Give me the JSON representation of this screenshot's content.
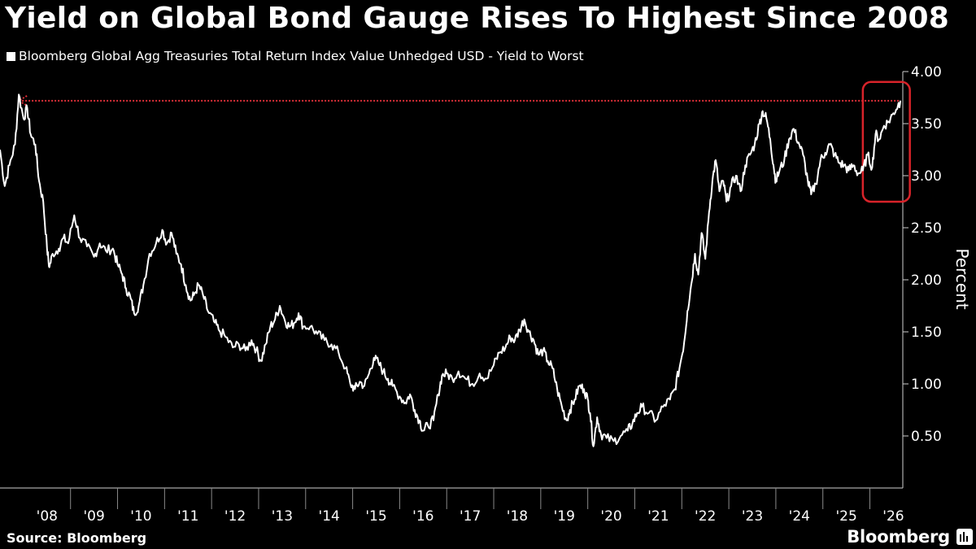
{
  "chart_data": {
    "type": "line",
    "title": "Yield on Global Bond Gauge Rises To Highest Since 2008",
    "series": [
      {
        "name": "Bloomberg Global Agg Treasuries Total Return Index Value Unhedged USD - Yield to Worst",
        "color": "#ffffff",
        "points": [
          [
            2007.5,
            3.25
          ],
          [
            2007.6,
            2.9
          ],
          [
            2007.7,
            3.1
          ],
          [
            2007.82,
            3.3
          ],
          [
            2007.9,
            3.78
          ],
          [
            2008.0,
            3.55
          ],
          [
            2008.08,
            3.65
          ],
          [
            2008.15,
            3.4
          ],
          [
            2008.25,
            3.3
          ],
          [
            2008.33,
            2.95
          ],
          [
            2008.42,
            2.75
          ],
          [
            2008.5,
            2.3
          ],
          [
            2008.55,
            2.12
          ],
          [
            2008.62,
            2.25
          ],
          [
            2008.75,
            2.3
          ],
          [
            2008.85,
            2.4
          ],
          [
            2008.95,
            2.35
          ],
          [
            2009.08,
            2.62
          ],
          [
            2009.2,
            2.4
          ],
          [
            2009.35,
            2.32
          ],
          [
            2009.5,
            2.22
          ],
          [
            2009.62,
            2.35
          ],
          [
            2009.75,
            2.28
          ],
          [
            2009.9,
            2.3
          ],
          [
            2010.0,
            2.15
          ],
          [
            2010.1,
            2.05
          ],
          [
            2010.18,
            1.92
          ],
          [
            2010.28,
            1.82
          ],
          [
            2010.35,
            1.68
          ],
          [
            2010.45,
            1.75
          ],
          [
            2010.55,
            1.95
          ],
          [
            2010.68,
            2.25
          ],
          [
            2010.82,
            2.35
          ],
          [
            2010.95,
            2.48
          ],
          [
            2011.05,
            2.35
          ],
          [
            2011.15,
            2.45
          ],
          [
            2011.25,
            2.25
          ],
          [
            2011.35,
            2.15
          ],
          [
            2011.45,
            1.95
          ],
          [
            2011.55,
            1.8
          ],
          [
            2011.62,
            1.85
          ],
          [
            2011.72,
            1.95
          ],
          [
            2011.82,
            1.85
          ],
          [
            2011.92,
            1.7
          ],
          [
            2012.05,
            1.6
          ],
          [
            2012.15,
            1.52
          ],
          [
            2012.3,
            1.45
          ],
          [
            2012.45,
            1.35
          ],
          [
            2012.58,
            1.38
          ],
          [
            2012.72,
            1.32
          ],
          [
            2012.85,
            1.42
          ],
          [
            2012.95,
            1.33
          ],
          [
            2013.05,
            1.22
          ],
          [
            2013.15,
            1.38
          ],
          [
            2013.25,
            1.55
          ],
          [
            2013.35,
            1.62
          ],
          [
            2013.45,
            1.75
          ],
          [
            2013.55,
            1.62
          ],
          [
            2013.65,
            1.55
          ],
          [
            2013.75,
            1.58
          ],
          [
            2013.85,
            1.68
          ],
          [
            2013.95,
            1.55
          ],
          [
            2014.1,
            1.55
          ],
          [
            2014.25,
            1.48
          ],
          [
            2014.4,
            1.42
          ],
          [
            2014.55,
            1.38
          ],
          [
            2014.7,
            1.3
          ],
          [
            2014.85,
            1.15
          ],
          [
            2014.95,
            1.0
          ],
          [
            2015.05,
            0.95
          ],
          [
            2015.15,
            1.02
          ],
          [
            2015.25,
            0.98
          ],
          [
            2015.35,
            1.1
          ],
          [
            2015.45,
            1.25
          ],
          [
            2015.55,
            1.2
          ],
          [
            2015.65,
            1.12
          ],
          [
            2015.75,
            1.05
          ],
          [
            2015.85,
            0.98
          ],
          [
            2016.0,
            0.88
          ],
          [
            2016.12,
            0.82
          ],
          [
            2016.22,
            0.9
          ],
          [
            2016.32,
            0.75
          ],
          [
            2016.42,
            0.65
          ],
          [
            2016.5,
            0.55
          ],
          [
            2016.6,
            0.6
          ],
          [
            2016.72,
            0.65
          ],
          [
            2016.82,
            0.9
          ],
          [
            2016.9,
            1.08
          ],
          [
            2017.0,
            1.1
          ],
          [
            2017.12,
            1.05
          ],
          [
            2017.25,
            1.12
          ],
          [
            2017.4,
            1.05
          ],
          [
            2017.55,
            1.0
          ],
          [
            2017.7,
            1.1
          ],
          [
            2017.85,
            1.05
          ],
          [
            2018.0,
            1.18
          ],
          [
            2018.12,
            1.3
          ],
          [
            2018.25,
            1.35
          ],
          [
            2018.35,
            1.45
          ],
          [
            2018.45,
            1.42
          ],
          [
            2018.55,
            1.52
          ],
          [
            2018.65,
            1.62
          ],
          [
            2018.75,
            1.5
          ],
          [
            2018.85,
            1.42
          ],
          [
            2018.95,
            1.28
          ],
          [
            2019.05,
            1.32
          ],
          [
            2019.15,
            1.22
          ],
          [
            2019.25,
            1.15
          ],
          [
            2019.35,
            0.95
          ],
          [
            2019.45,
            0.78
          ],
          [
            2019.55,
            0.65
          ],
          [
            2019.62,
            0.75
          ],
          [
            2019.72,
            0.85
          ],
          [
            2019.82,
            0.98
          ],
          [
            2019.92,
            0.95
          ],
          [
            2020.0,
            0.85
          ],
          [
            2020.05,
            0.72
          ],
          [
            2020.12,
            0.4
          ],
          [
            2020.2,
            0.68
          ],
          [
            2020.28,
            0.52
          ],
          [
            2020.4,
            0.48
          ],
          [
            2020.55,
            0.45
          ],
          [
            2020.7,
            0.5
          ],
          [
            2020.85,
            0.55
          ],
          [
            2020.95,
            0.62
          ],
          [
            2021.05,
            0.72
          ],
          [
            2021.15,
            0.78
          ],
          [
            2021.3,
            0.72
          ],
          [
            2021.45,
            0.65
          ],
          [
            2021.6,
            0.78
          ],
          [
            2021.75,
            0.85
          ],
          [
            2021.85,
            0.95
          ],
          [
            2021.95,
            1.15
          ],
          [
            2022.05,
            1.4
          ],
          [
            2022.12,
            1.7
          ],
          [
            2022.2,
            1.95
          ],
          [
            2022.28,
            2.25
          ],
          [
            2022.35,
            2.05
          ],
          [
            2022.42,
            2.45
          ],
          [
            2022.5,
            2.2
          ],
          [
            2022.58,
            2.65
          ],
          [
            2022.65,
            2.95
          ],
          [
            2022.72,
            3.15
          ],
          [
            2022.8,
            2.85
          ],
          [
            2022.88,
            2.95
          ],
          [
            2022.95,
            2.75
          ],
          [
            2023.05,
            2.9
          ],
          [
            2023.15,
            3.0
          ],
          [
            2023.25,
            2.85
          ],
          [
            2023.35,
            3.1
          ],
          [
            2023.45,
            3.2
          ],
          [
            2023.55,
            3.3
          ],
          [
            2023.65,
            3.5
          ],
          [
            2023.72,
            3.62
          ],
          [
            2023.8,
            3.55
          ],
          [
            2023.88,
            3.35
          ],
          [
            2023.95,
            3.1
          ],
          [
            2024.0,
            2.95
          ],
          [
            2024.08,
            3.05
          ],
          [
            2024.18,
            3.15
          ],
          [
            2024.28,
            3.35
          ],
          [
            2024.38,
            3.45
          ],
          [
            2024.48,
            3.32
          ],
          [
            2024.58,
            3.2
          ],
          [
            2024.68,
            2.95
          ],
          [
            2024.75,
            2.82
          ],
          [
            2024.85,
            2.92
          ],
          [
            2024.95,
            3.15
          ],
          [
            2025.05,
            3.22
          ],
          [
            2025.15,
            3.3
          ],
          [
            2025.25,
            3.2
          ],
          [
            2025.35,
            3.12
          ],
          [
            2025.45,
            3.1
          ],
          [
            2025.55,
            3.05
          ],
          [
            2025.65,
            3.1
          ],
          [
            2025.75,
            3.02
          ],
          [
            2025.85,
            3.05
          ],
          [
            2025.95,
            3.2
          ],
          [
            2026.05,
            3.08
          ],
          [
            2026.12,
            3.4
          ],
          [
            2026.2,
            3.35
          ],
          [
            2026.3,
            3.48
          ],
          [
            2026.4,
            3.52
          ],
          [
            2026.5,
            3.6
          ],
          [
            2026.6,
            3.68
          ],
          [
            2026.65,
            3.72
          ]
        ]
      }
    ],
    "xlim": [
      2007.5,
      2026.7
    ],
    "ylim": [
      0,
      4.0
    ],
    "x_ticks": [
      {
        "pos": 2008,
        "label": "'08"
      },
      {
        "pos": 2009,
        "label": "'09"
      },
      {
        "pos": 2010,
        "label": "'10"
      },
      {
        "pos": 2011,
        "label": "'11"
      },
      {
        "pos": 2012,
        "label": "'12"
      },
      {
        "pos": 2013,
        "label": "'13"
      },
      {
        "pos": 2014,
        "label": "'14"
      },
      {
        "pos": 2015,
        "label": "'15"
      },
      {
        "pos": 2016,
        "label": "'16"
      },
      {
        "pos": 2017,
        "label": "'17"
      },
      {
        "pos": 2018,
        "label": "'18"
      },
      {
        "pos": 2019,
        "label": "'19"
      },
      {
        "pos": 2020,
        "label": "'20"
      },
      {
        "pos": 2021,
        "label": "'21"
      },
      {
        "pos": 2022,
        "label": "'22"
      },
      {
        "pos": 2023,
        "label": "'23"
      },
      {
        "pos": 2024,
        "label": "'24"
      },
      {
        "pos": 2025,
        "label": "'25"
      },
      {
        "pos": 2026,
        "label": "'26"
      }
    ],
    "y_ticks": [
      {
        "value": 4.0,
        "label": "4.00"
      },
      {
        "value": 3.5,
        "label": "3.50"
      },
      {
        "value": 3.0,
        "label": "3.00"
      },
      {
        "value": 2.5,
        "label": "2.50"
      },
      {
        "value": 2.0,
        "label": "2.00"
      },
      {
        "value": 1.5,
        "label": "1.50"
      },
      {
        "value": 1.0,
        "label": "1.00"
      },
      {
        "value": 0.5,
        "label": "0.50"
      }
    ],
    "ylabel": "Percent",
    "reference_line": {
      "value": 3.72,
      "x_start": 2007.9,
      "x_end": 2026.62,
      "color": "#e0303a",
      "style": "dotted",
      "arrow": "left"
    },
    "highlight_box": {
      "x_start": 2025.85,
      "x_end": 2026.85,
      "y_start": 2.75,
      "y_end": 3.9,
      "color": "#d8232a"
    },
    "grid": false,
    "legend_position": "top-left"
  },
  "source": "Source: Bloomberg",
  "brand": "Bloomberg"
}
